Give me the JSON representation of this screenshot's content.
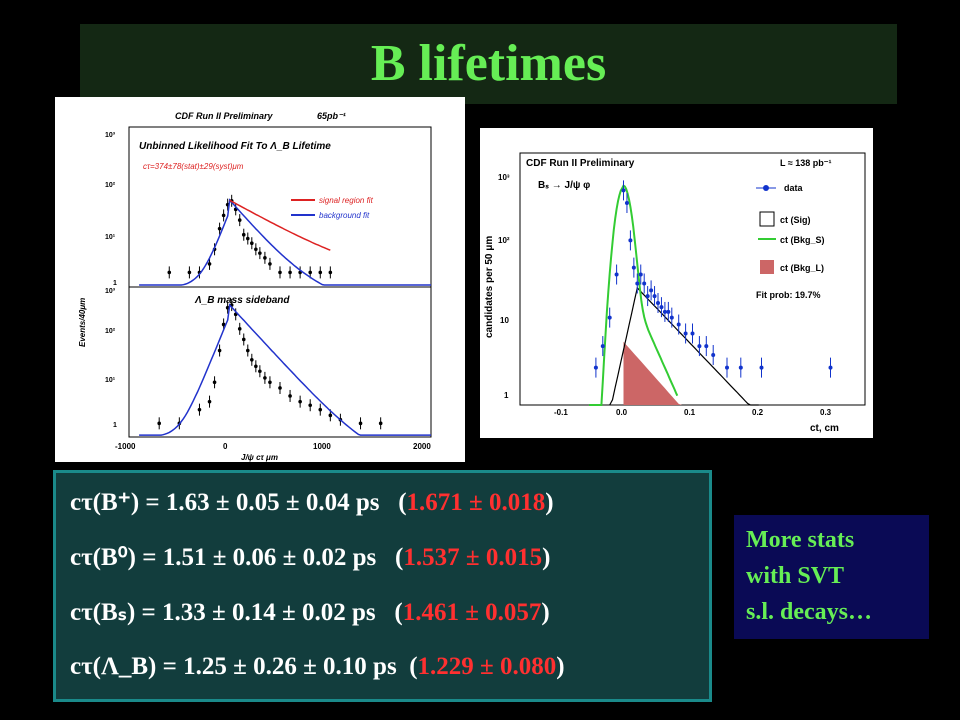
{
  "title": "B lifetimes",
  "results": [
    {
      "label": "cτ(B⁺)",
      "value": "= 1.63 ± 0.05 ± 0.04 ps",
      "pdg": "1.671 ± 0.018"
    },
    {
      "label": "cτ(B⁰)",
      "value": "= 1.51 ± 0.06 ± 0.02 ps",
      "pdg": "1.537 ± 0.015"
    },
    {
      "label": "cτ(Bₛ)",
      "value": "= 1.33 ± 0.14 ± 0.02 ps",
      "pdg": "1.461 ± 0.057"
    },
    {
      "label": "cτ(Λ_B)",
      "value": "= 1.25 ± 0.26 ± 0.10 ps",
      "pdg": "1.229 ± 0.080"
    }
  ],
  "note": {
    "lines": [
      "More stats",
      "with SVT",
      "s.l. decays…"
    ]
  },
  "colors": {
    "title": "#66ee55",
    "pdg": "#ff3030",
    "signal_fit": "#dd2222",
    "background_fit": "#2233cc",
    "data_blue": "#1133cc",
    "green_fit": "#33cc33",
    "bkg_fill": "#cc6666"
  },
  "chart_data": [
    {
      "type": "scatter",
      "header": "CDF Run II Preliminary",
      "lumi": "65pb⁻¹",
      "title": "Unbinned Likelihood Fit To Λ_B Lifetime",
      "fit_result": "cτ=374±78(stat)±29(syst)μm",
      "legend": [
        "signal region fit",
        "background fit"
      ],
      "xlabel": "J/ψ cτ μm",
      "ylabel": "Events/40μm",
      "x_ticks": [
        "-1000",
        "0",
        "1000",
        "2000"
      ],
      "y_ticks": [
        "1",
        "10¹",
        "10²",
        "10³"
      ],
      "xlim": [
        -1000,
        2000
      ],
      "ylim": [
        0.5,
        1000
      ],
      "log_y": true,
      "panel2_label": "Λ_B mass sideband",
      "panels": [
        {
          "name": "signal region",
          "x": [
            -600,
            -400,
            -300,
            -200,
            -150,
            -100,
            -60,
            -20,
            20,
            60,
            100,
            140,
            180,
            220,
            260,
            300,
            350,
            400,
            500,
            600,
            700,
            800,
            900,
            1000
          ],
          "y": [
            1,
            1,
            1,
            1.5,
            3,
            8,
            15,
            25,
            30,
            20,
            12,
            6,
            5,
            4,
            3,
            2.5,
            2,
            1.5,
            1,
            1,
            1,
            1,
            1,
            1
          ]
        },
        {
          "name": "mass sideband",
          "x": [
            -700,
            -500,
            -300,
            -200,
            -150,
            -100,
            -60,
            -20,
            20,
            60,
            100,
            140,
            180,
            220,
            260,
            300,
            350,
            400,
            500,
            600,
            700,
            800,
            900,
            1000,
            1100,
            1300,
            1500
          ],
          "y": [
            1,
            1,
            2,
            3,
            8,
            40,
            150,
            350,
            400,
            250,
            120,
            70,
            40,
            25,
            18,
            14,
            10,
            8,
            6,
            4,
            3,
            2.5,
            2,
            1.5,
            1.2,
            1,
            1
          ]
        }
      ]
    },
    {
      "type": "scatter",
      "header": "CDF Run II Preliminary",
      "lumi": "L ≈ 138 pb⁻¹",
      "process": "Bₛ → J/ψ φ",
      "legend": [
        "data",
        "ct (Sig)",
        "ct (Bkg_S)",
        "ct (Bkg_L)"
      ],
      "fit_prob": "Fit prob: 19.7%",
      "xlabel": "ct, cm",
      "ylabel": "candidates per 50 μm",
      "x_ticks": [
        "-0.1",
        "0.0",
        "0.1",
        "0.2",
        "0.3"
      ],
      "y_ticks": [
        "1",
        "10",
        "10²",
        "10³"
      ],
      "xlim": [
        -0.15,
        0.35
      ],
      "ylim": [
        0.3,
        1000
      ],
      "log_y": true,
      "x": [
        -0.04,
        -0.03,
        -0.02,
        -0.01,
        0.0,
        0.005,
        0.01,
        0.015,
        0.02,
        0.025,
        0.03,
        0.035,
        0.04,
        0.045,
        0.05,
        0.055,
        0.06,
        0.065,
        0.07,
        0.08,
        0.09,
        0.1,
        0.11,
        0.12,
        0.13,
        0.15,
        0.17,
        0.2,
        0.3
      ],
      "y": [
        1,
        2,
        5,
        20,
        300,
        200,
        60,
        25,
        15,
        20,
        15,
        10,
        12,
        10,
        8,
        7,
        6,
        6,
        5,
        4,
        3,
        3,
        2,
        2,
        1.5,
        1,
        1,
        1,
        1
      ]
    }
  ]
}
